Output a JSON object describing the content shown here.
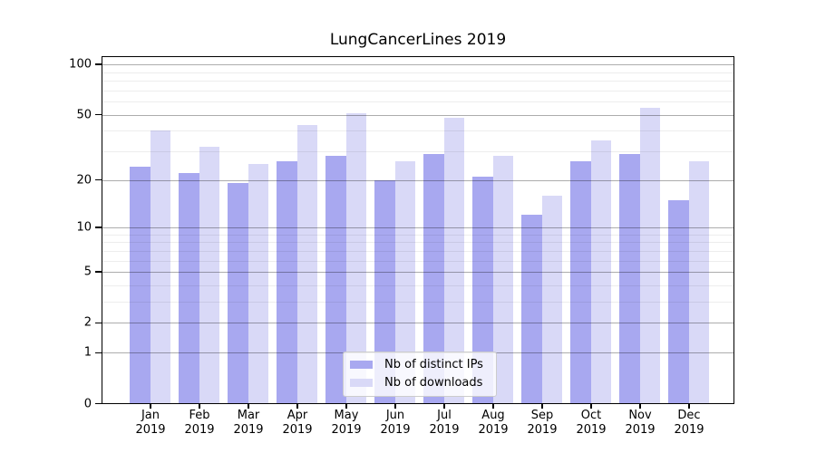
{
  "chart_data": {
    "type": "bar",
    "title": "LungCancerLines 2019",
    "categories": [
      "Jan",
      "Feb",
      "Mar",
      "Apr",
      "May",
      "Jun",
      "Jul",
      "Aug",
      "Sep",
      "Oct",
      "Nov",
      "Dec"
    ],
    "x_year": "2019",
    "series": [
      {
        "name": "Nb of distinct IPs",
        "color": "#a8a8f0",
        "values": [
          24,
          22,
          19,
          26,
          28,
          20,
          29,
          21,
          12,
          26,
          29,
          15
        ]
      },
      {
        "name": "Nb of downloads",
        "color": "#d9d9f7",
        "values": [
          40,
          32,
          25,
          43,
          51,
          26,
          48,
          28,
          16,
          35,
          55,
          26
        ]
      }
    ],
    "y_scale": "log10(value+1)",
    "y_ticks": [
      100,
      50,
      20,
      10,
      5,
      2,
      1,
      0
    ],
    "y_gridlines": [
      1,
      2,
      3,
      4,
      5,
      6,
      7,
      8,
      9,
      10,
      20,
      30,
      40,
      50,
      60,
      70,
      80,
      90,
      100
    ],
    "ylim": [
      0,
      110
    ],
    "grid": true,
    "legend_position": "lower center",
    "colors": {
      "frame": "#000000",
      "major_grid": "#b3b3b3",
      "minor_grid": "#ececec"
    }
  }
}
